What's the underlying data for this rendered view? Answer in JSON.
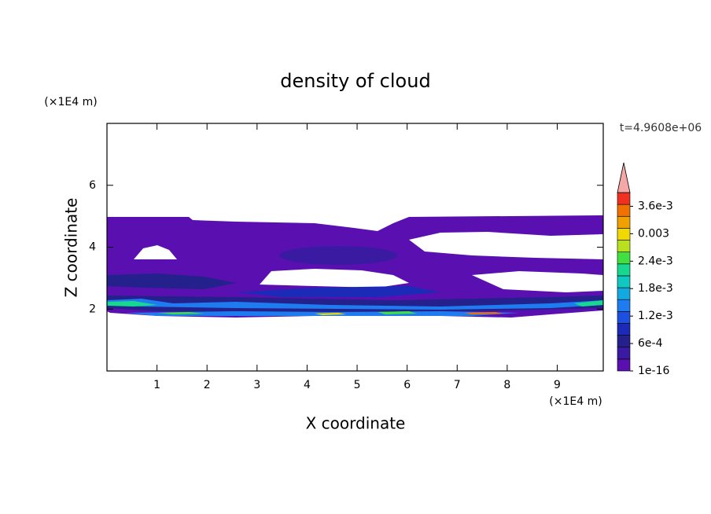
{
  "chart_data": {
    "type": "contour",
    "title": "density of cloud",
    "xlabel": "X coordinate",
    "ylabel": "Z coordinate",
    "xunit": "(×1E4 m)",
    "yunit": "(×1E4 m)",
    "annotation": "t=4.9608e+06",
    "xlim": [
      0,
      9.92
    ],
    "ylim": [
      0,
      8
    ],
    "xticks": [
      1,
      2,
      3,
      4,
      5,
      6,
      7,
      8,
      9
    ],
    "yticks": [
      2,
      4,
      6
    ],
    "colorbar": {
      "clim": [
        0,
        0.0039
      ],
      "colors": [
        "#5a10b0",
        "#3a1aa0",
        "#24208c",
        "#1c2ab8",
        "#1c50e0",
        "#1e7cf0",
        "#12a8e0",
        "#10c8c0",
        "#18d890",
        "#40e040",
        "#b8e020",
        "#f0d800",
        "#f0a000",
        "#f07000",
        "#f03020"
      ],
      "extend_color": "#f4a8a8",
      "ticks": [
        1e-16,
        {
          "value": 0.0006,
          "label": "6e-4"
        },
        {
          "value": 0.0012,
          "label": "1.2e-3"
        },
        {
          "value": 0.0018,
          "label": "1.8e-3"
        },
        {
          "value": 0.0024,
          "label": "2.4e-3"
        },
        0.003,
        {
          "value": 0.0036,
          "label": "3.6e-3"
        }
      ]
    }
  }
}
